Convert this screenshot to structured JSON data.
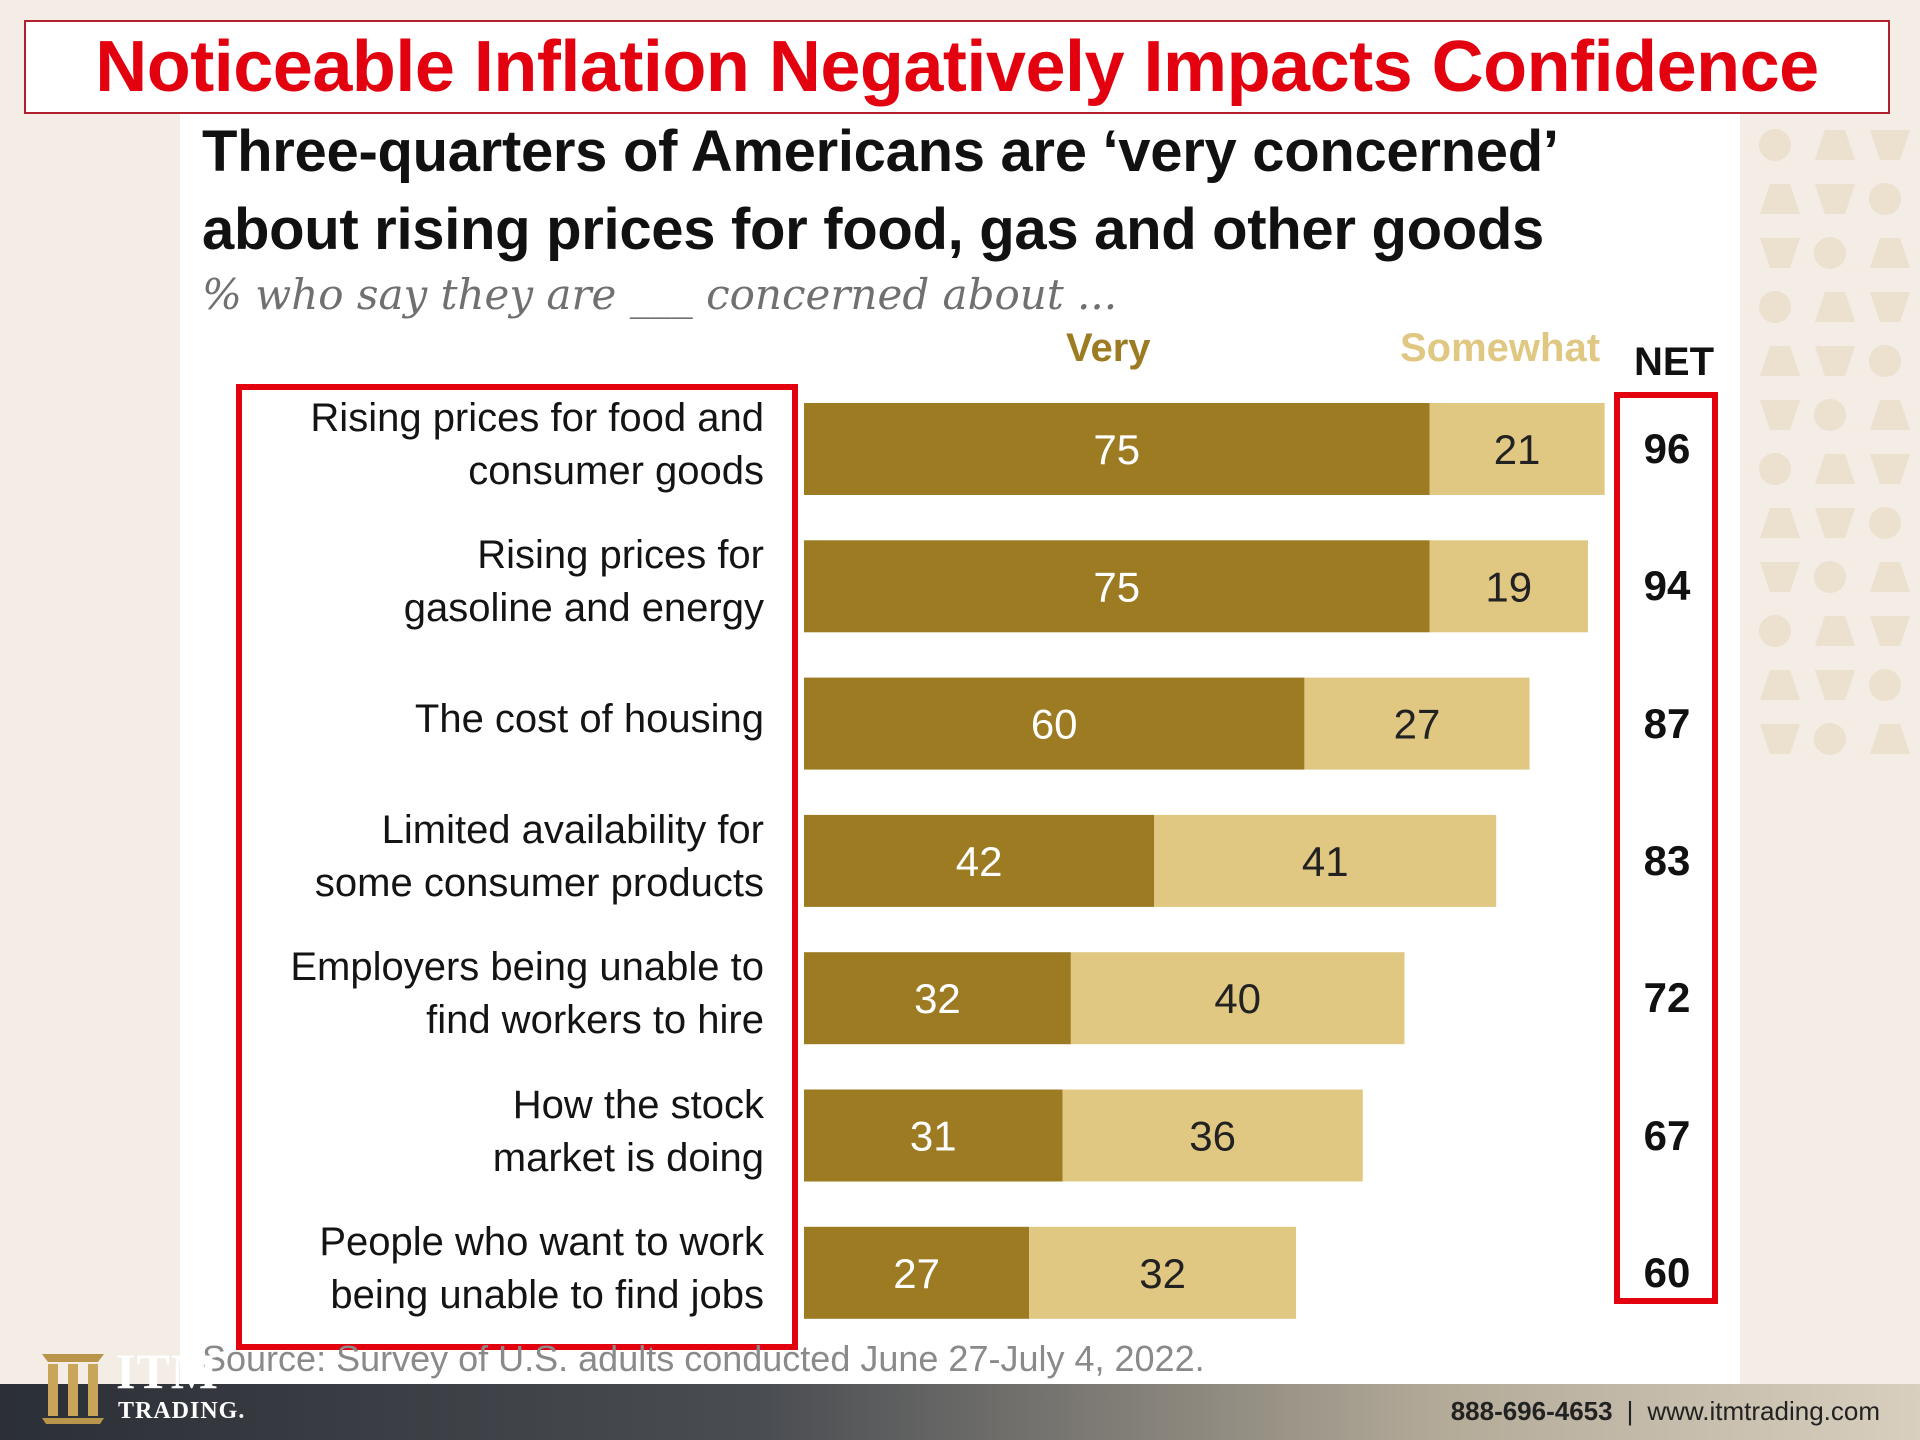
{
  "headline": "Noticeable Inflation Negatively Impacts Confidence",
  "chart_title_line1": "Three-quarters of Americans are ‘very concerned’",
  "chart_title_line2": "about rising prices for food, gas and other goods",
  "chart_subtitle": "% who say they are ___ concerned about ...",
  "legend": {
    "very": "Very",
    "somewhat": "Somewhat",
    "net": "NET"
  },
  "source": "Source: Survey of U.S. adults conducted June 27-July 4, 2022.",
  "footer": {
    "phone": "888-696-4653",
    "website": "www.itmtrading.com"
  },
  "logo": {
    "itm": "ITM",
    "trading": "TRADING."
  },
  "colors": {
    "very": "#9d7b22",
    "somewhat": "#e0c883",
    "highlight": "#e3000f"
  },
  "chart_data": {
    "type": "bar",
    "stacked": true,
    "orientation": "horizontal",
    "title": "Three-quarters of Americans are ‘very concerned’ about rising prices for food, gas and other goods",
    "subtitle": "% who say they are ___ concerned about ...",
    "categories": [
      [
        "Rising prices for food and",
        "consumer goods"
      ],
      [
        "Rising prices for",
        "gasoline and energy"
      ],
      [
        "The cost of housing"
      ],
      [
        "Limited availability for",
        "some consumer products"
      ],
      [
        "Employers being unable to",
        "find workers to hire"
      ],
      [
        "How the stock",
        "market is doing"
      ],
      [
        "People who want to work",
        "being unable to find jobs"
      ]
    ],
    "series": [
      {
        "name": "Very",
        "values": [
          75,
          75,
          60,
          42,
          32,
          31,
          27
        ]
      },
      {
        "name": "Somewhat",
        "values": [
          21,
          19,
          27,
          41,
          40,
          36,
          32
        ]
      }
    ],
    "net": [
      96,
      94,
      87,
      83,
      72,
      67,
      60
    ],
    "net_label": "NET",
    "xlim": [
      0,
      96
    ],
    "grid": false,
    "legend_position": "top"
  }
}
